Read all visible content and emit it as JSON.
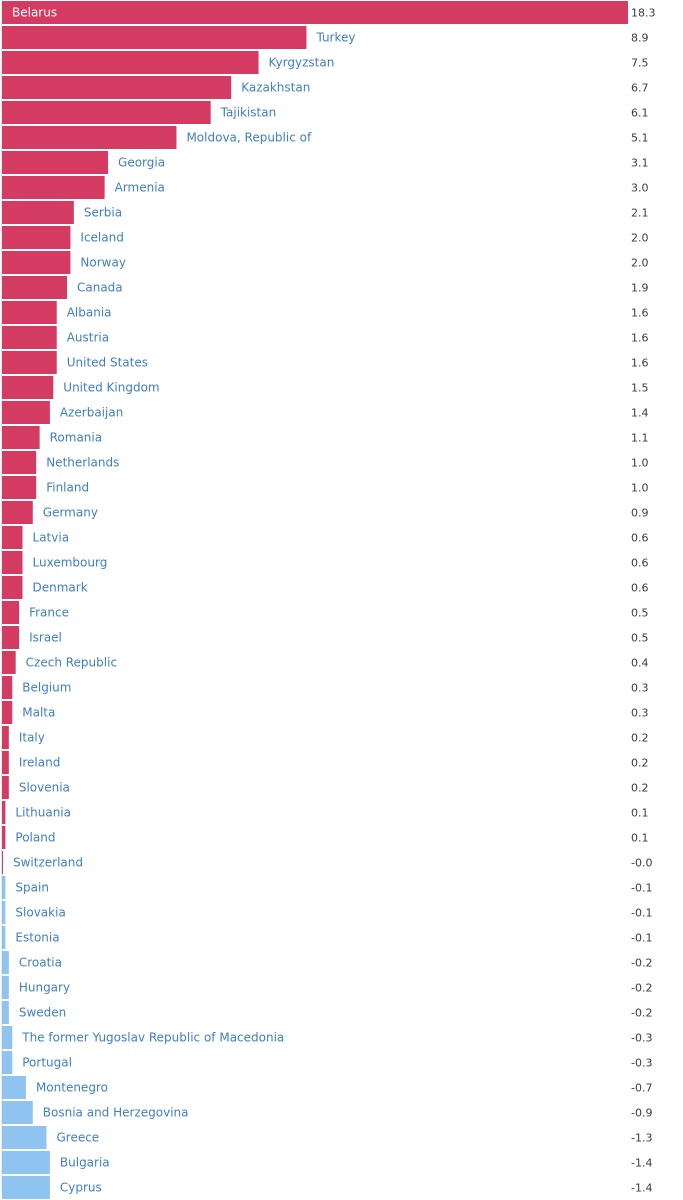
{
  "chart_data": {
    "type": "bar",
    "orientation": "horizontal",
    "colors": {
      "positive": "#d43b63",
      "negative": "#8fc3f0",
      "label_on_bar": "#ffffff",
      "label": "#3f7fc4",
      "value": "#3c3c3c"
    },
    "xlim": [
      0,
      18.3
    ],
    "categories": [
      "Belarus",
      "Turkey",
      "Kyrgyzstan",
      "Kazakhstan",
      "Tajikistan",
      "Moldova, Republic of",
      "Georgia",
      "Armenia",
      "Serbia",
      "Iceland",
      "Norway",
      "Canada",
      "Albania",
      "Austria",
      "United States",
      "United Kingdom",
      "Azerbaijan",
      "Romania",
      "Netherlands",
      "Finland",
      "Germany",
      "Latvia",
      "Luxembourg",
      "Denmark",
      "France",
      "Israel",
      "Czech Republic",
      "Belgium",
      "Malta",
      "Italy",
      "Ireland",
      "Slovenia",
      "Lithuania",
      "Poland",
      "Switzerland",
      "Spain",
      "Slovakia",
      "Estonia",
      "Croatia",
      "Hungary",
      "Sweden",
      "The former Yugoslav Republic of Macedonia",
      "Portugal",
      "Montenegro",
      "Bosnia and Herzegovina",
      "Greece",
      "Bulgaria",
      "Cyprus"
    ],
    "values": [
      18.3,
      8.9,
      7.5,
      6.7,
      6.1,
      5.1,
      3.1,
      3.0,
      2.1,
      2.0,
      2.0,
      1.9,
      1.6,
      1.6,
      1.6,
      1.5,
      1.4,
      1.1,
      1.0,
      1.0,
      0.9,
      0.6,
      0.6,
      0.6,
      0.5,
      0.5,
      0.4,
      0.3,
      0.3,
      0.2,
      0.2,
      0.2,
      0.1,
      0.1,
      -0.0,
      -0.1,
      -0.1,
      -0.1,
      -0.2,
      -0.2,
      -0.2,
      -0.3,
      -0.3,
      -0.7,
      -0.9,
      -1.3,
      -1.4,
      -1.4
    ],
    "value_labels": [
      "18.3",
      "8.9",
      "7.5",
      "6.7",
      "6.1",
      "5.1",
      "3.1",
      "3.0",
      "2.1",
      "2.0",
      "2.0",
      "1.9",
      "1.6",
      "1.6",
      "1.6",
      "1.5",
      "1.4",
      "1.1",
      "1.0",
      "1.0",
      "0.9",
      "0.6",
      "0.6",
      "0.6",
      "0.5",
      "0.5",
      "0.4",
      "0.3",
      "0.3",
      "0.2",
      "0.2",
      "0.2",
      "0.1",
      "0.1",
      "-0.0",
      "-0.1",
      "-0.1",
      "-0.1",
      "-0.2",
      "-0.2",
      "-0.2",
      "-0.3",
      "-0.3",
      "-0.7",
      "-0.9",
      "-1.3",
      "-1.4",
      "-1.4"
    ]
  }
}
